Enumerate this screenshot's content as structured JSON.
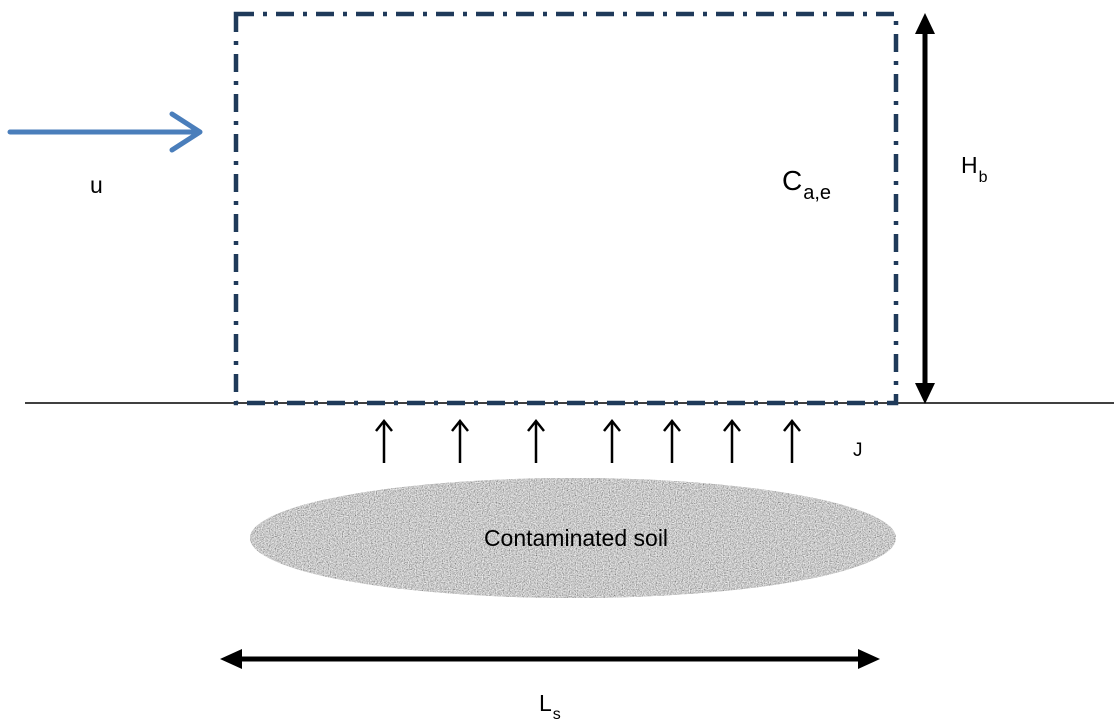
{
  "labels": {
    "wind_speed": "u",
    "concentration_main": "C",
    "concentration_sub": "a,e",
    "box_height_main": "H",
    "box_height_sub": "b",
    "flux": "J",
    "source_length_main": "L",
    "source_length_sub": "s",
    "soil": "Contaminated soil"
  },
  "colors": {
    "box_outline": "#1f3a5a",
    "wind_arrow": "#4a7ebb",
    "lines": "#000000",
    "soil_light": "#d8d8d8",
    "soil_dark": "#555555"
  },
  "icons": {
    "wind": "arrow-right-icon",
    "flux": "arrow-up-icon",
    "dimension": "double-arrow-icon"
  },
  "flux_arrow_count": 7
}
